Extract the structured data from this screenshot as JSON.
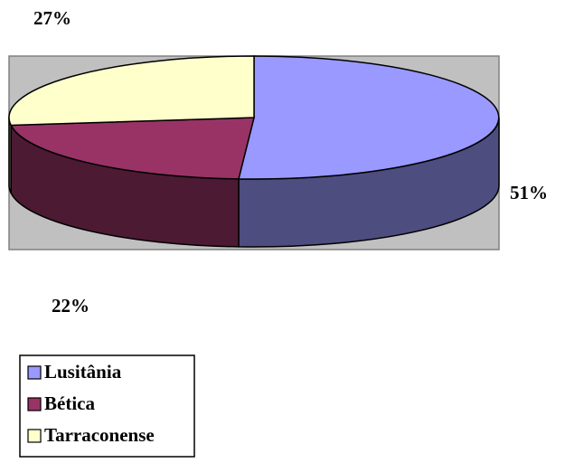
{
  "chart_data": {
    "type": "pie3d",
    "categories": [
      "Lusitânia",
      "Bética",
      "Tarraconense"
    ],
    "values": [
      51,
      22,
      27
    ],
    "value_labels": [
      "51%",
      "22%",
      "27%"
    ],
    "colors": [
      "#9999ff",
      "#993366",
      "#ffffcc"
    ],
    "side_colors": [
      "#4d4d80",
      "#4d1a33",
      "#80806a"
    ],
    "legend": "bottom-left"
  }
}
